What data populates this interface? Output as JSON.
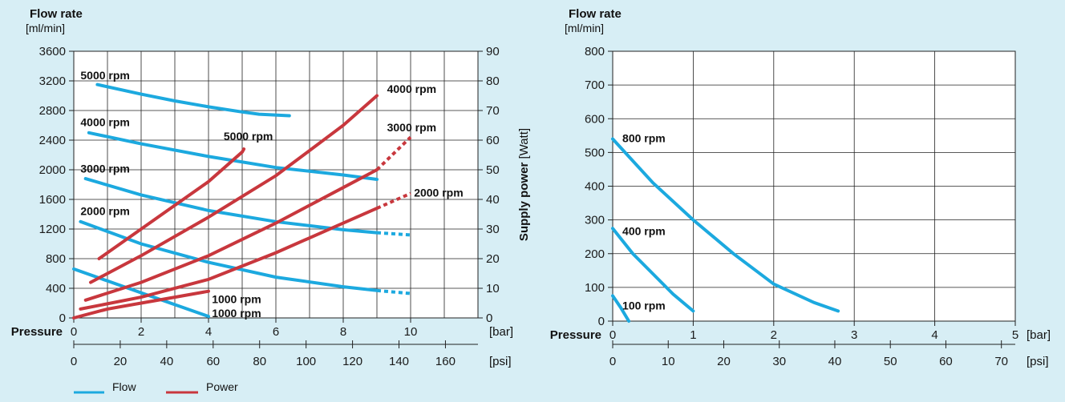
{
  "colors": {
    "background": "#d7eef5",
    "flow": "#1ca9df",
    "power": "#c8373d",
    "grid": "#222222"
  },
  "legend": {
    "flow_label": "Flow",
    "power_label": "Power",
    "placement": "bottom-left"
  },
  "chart_data": [
    {
      "type": "line",
      "ylabel": "Flow rate",
      "ylabel_unit": "[ml/min]",
      "y2label": "Supply power",
      "y2label_unit": "[Watt]",
      "xlabel": "Pressure",
      "x_unit": "[bar]",
      "x2_unit": "[psi]",
      "xlim": [
        0,
        12
      ],
      "ylim": [
        0,
        3600
      ],
      "y2lim": [
        0,
        90
      ],
      "x2lim": [
        0,
        174
      ],
      "x_ticks": [
        0,
        2,
        4,
        6,
        8,
        10
      ],
      "y_ticks": [
        0,
        400,
        800,
        1200,
        1600,
        2000,
        2400,
        2800,
        3200,
        3600
      ],
      "y2_ticks": [
        0,
        10,
        20,
        30,
        40,
        50,
        60,
        70,
        80,
        90
      ],
      "x2_ticks": [
        0,
        20,
        40,
        60,
        80,
        100,
        120,
        140,
        160
      ],
      "grid": true,
      "series": [
        {
          "name": "5000 rpm",
          "kind": "flow",
          "x": [
            0.7,
            2,
            3,
            4,
            5,
            5.5,
            6.4
          ],
          "y": [
            3150,
            3020,
            2930,
            2850,
            2780,
            2750,
            2730
          ],
          "dashed_from": null,
          "label_x": 0.2,
          "label_y": 3220
        },
        {
          "name": "4000 rpm",
          "kind": "flow",
          "x": [
            0.45,
            2,
            4,
            6,
            8,
            9
          ],
          "y": [
            2500,
            2350,
            2180,
            2030,
            1930,
            1870
          ],
          "dashed_from": null,
          "label_x": 0.2,
          "label_y": 2590
        },
        {
          "name": "3000 rpm",
          "kind": "flow",
          "x": [
            0.35,
            2,
            4,
            6,
            8,
            9,
            10
          ],
          "y": [
            1880,
            1660,
            1450,
            1300,
            1190,
            1150,
            1120
          ],
          "dashed_from": 9,
          "label_x": 0.2,
          "label_y": 1960
        },
        {
          "name": "2000 rpm",
          "kind": "flow",
          "x": [
            0.2,
            2,
            4,
            6,
            8,
            9,
            10
          ],
          "y": [
            1300,
            1000,
            750,
            550,
            420,
            370,
            330
          ],
          "dashed_from": 9,
          "label_x": 0.2,
          "label_y": 1390
        },
        {
          "name": "1000 rpm",
          "kind": "flow",
          "x": [
            0,
            1,
            2,
            3,
            4
          ],
          "y": [
            660,
            500,
            340,
            180,
            20
          ],
          "dashed_from": null,
          "label_x": 4.1,
          "label_y": 10
        },
        {
          "name": "5000 rpm",
          "kind": "power",
          "x": [
            0.75,
            2,
            3,
            4,
            5,
            5.05
          ],
          "y": [
            20,
            30,
            38,
            46,
            56,
            57
          ],
          "dashed_from": null,
          "label_x": 4.45,
          "label_y": 60
        },
        {
          "name": "4000 rpm",
          "kind": "power",
          "x": [
            0.5,
            2,
            4,
            6,
            8,
            9
          ],
          "y": [
            12,
            21,
            34,
            48,
            65,
            75
          ],
          "dashed_from": null,
          "label_x": 9.3,
          "label_y": 76
        },
        {
          "name": "3000 rpm",
          "kind": "power",
          "x": [
            0.35,
            2,
            4,
            6,
            8,
            9,
            10
          ],
          "y": [
            6,
            12,
            21,
            32,
            44,
            50,
            61
          ],
          "dashed_from": 9,
          "label_x": 9.3,
          "label_y": 63
        },
        {
          "name": "2000 rpm",
          "kind": "power",
          "x": [
            0.2,
            2,
            4,
            6,
            8,
            9,
            10
          ],
          "y": [
            3,
            7,
            13,
            22,
            32,
            37,
            42
          ],
          "dashed_from": 9,
          "label_x": 10.1,
          "label_y": 41
        },
        {
          "name": "1000 rpm",
          "kind": "power",
          "x": [
            0,
            1,
            2,
            3,
            4
          ],
          "y": [
            0,
            3,
            5,
            7,
            9
          ],
          "dashed_from": null,
          "label_x": 4.1,
          "label_y": 5
        }
      ]
    },
    {
      "type": "line",
      "ylabel": "Flow rate",
      "ylabel_unit": "[ml/min]",
      "xlabel": "Pressure",
      "x_unit": "[bar]",
      "x2_unit": "[psi]",
      "xlim": [
        0,
        5
      ],
      "ylim": [
        0,
        800
      ],
      "x2lim": [
        0,
        72.5
      ],
      "x_ticks": [
        0,
        1,
        2,
        3,
        4,
        5
      ],
      "y_ticks": [
        0,
        100,
        200,
        300,
        400,
        500,
        600,
        700,
        800
      ],
      "x2_ticks": [
        0,
        10,
        20,
        30,
        40,
        50,
        60,
        70
      ],
      "grid": true,
      "series": [
        {
          "name": "800 rpm",
          "kind": "flow",
          "x": [
            0,
            0.5,
            1,
            1.5,
            2,
            2.5,
            2.8
          ],
          "y": [
            540,
            410,
            300,
            200,
            110,
            55,
            30
          ],
          "dashed_from": null,
          "label_x": 0.12,
          "label_y": 530
        },
        {
          "name": "400 rpm",
          "kind": "flow",
          "x": [
            0,
            0.25,
            0.5,
            0.75,
            1
          ],
          "y": [
            275,
            200,
            140,
            80,
            30
          ],
          "dashed_from": null,
          "label_x": 0.12,
          "label_y": 255
        },
        {
          "name": "100 rpm",
          "kind": "flow",
          "x": [
            0,
            0.1,
            0.2
          ],
          "y": [
            75,
            40,
            0
          ],
          "dashed_from": null,
          "label_x": 0.12,
          "label_y": 35
        }
      ]
    }
  ]
}
